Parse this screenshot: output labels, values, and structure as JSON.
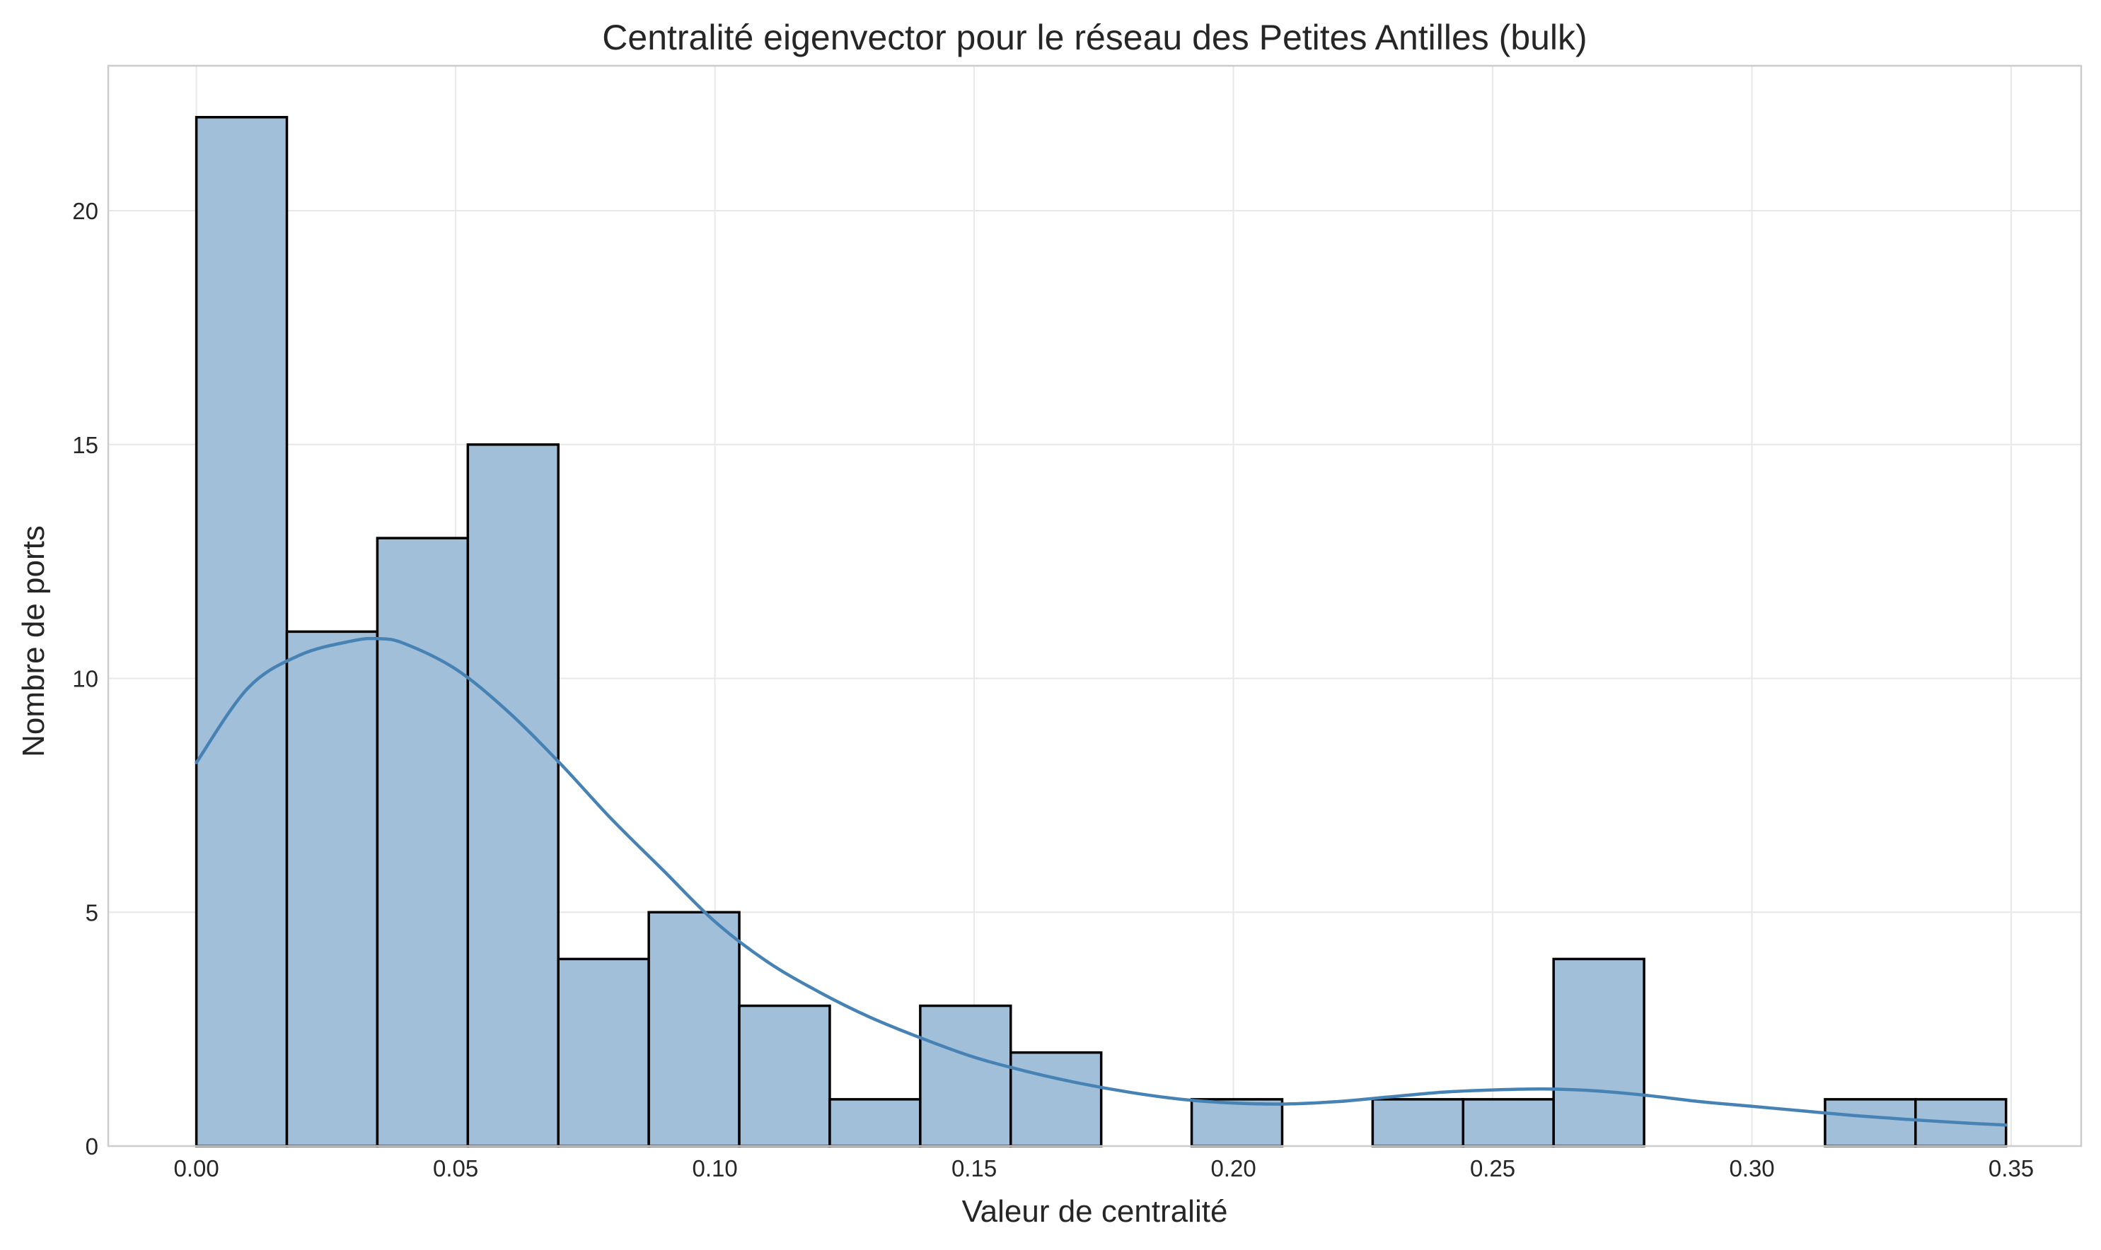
{
  "chart_data": {
    "type": "histogram",
    "title": "Centralité eigenvector pour le réseau des Petites Antilles (bulk)",
    "xlabel": "Valeur de centralité",
    "ylabel": "Nombre de ports",
    "xlim": [
      -0.017,
      0.3635
    ],
    "ylim": [
      0,
      23.1
    ],
    "x_ticks": [
      0.0,
      0.05,
      0.1,
      0.15,
      0.2,
      0.25,
      0.3,
      0.35
    ],
    "x_tick_labels": [
      "0.00",
      "0.05",
      "0.10",
      "0.15",
      "0.20",
      "0.25",
      "0.30",
      "0.35"
    ],
    "y_ticks": [
      0,
      5,
      10,
      15,
      20
    ],
    "y_tick_labels": [
      "0",
      "5",
      "10",
      "15",
      "20"
    ],
    "bin_start": 0.0,
    "bin_end": 0.349,
    "bin_edges": [
      0.0,
      0.01745,
      0.0349,
      0.05235,
      0.0698,
      0.08725,
      0.1047,
      0.12215,
      0.1396,
      0.15705,
      0.1745,
      0.19195,
      0.2094,
      0.22685,
      0.2443,
      0.26175,
      0.2792,
      0.29665,
      0.3141,
      0.33155,
      0.349
    ],
    "counts": [
      22,
      11,
      13,
      15,
      4,
      5,
      3,
      1,
      3,
      2,
      0,
      1,
      0,
      1,
      1,
      4,
      0,
      0,
      1,
      1
    ],
    "kde": {
      "x": [
        0.0,
        0.01,
        0.02,
        0.03,
        0.035,
        0.04,
        0.05,
        0.06,
        0.07,
        0.08,
        0.09,
        0.1,
        0.11,
        0.12,
        0.13,
        0.14,
        0.15,
        0.16,
        0.17,
        0.18,
        0.19,
        0.2,
        0.21,
        0.22,
        0.23,
        0.24,
        0.25,
        0.26,
        0.27,
        0.28,
        0.29,
        0.3,
        0.31,
        0.32,
        0.33,
        0.34,
        0.349
      ],
      "y": [
        8.2,
        9.8,
        10.5,
        10.8,
        10.85,
        10.75,
        10.2,
        9.3,
        8.2,
        7.0,
        5.9,
        4.8,
        3.95,
        3.3,
        2.75,
        2.3,
        1.9,
        1.6,
        1.35,
        1.15,
        1.0,
        0.92,
        0.9,
        0.95,
        1.05,
        1.15,
        1.2,
        1.22,
        1.18,
        1.08,
        0.95,
        0.85,
        0.75,
        0.65,
        0.57,
        0.5,
        0.45
      ]
    },
    "grid": true,
    "legend": "none"
  },
  "colors": {
    "bar_fill": "#a2bfda",
    "bar_edge": "#000000",
    "kde_line": "#4682b4",
    "grid": "#e8e8e8",
    "frame": "#cccccc",
    "text": "#262626"
  }
}
